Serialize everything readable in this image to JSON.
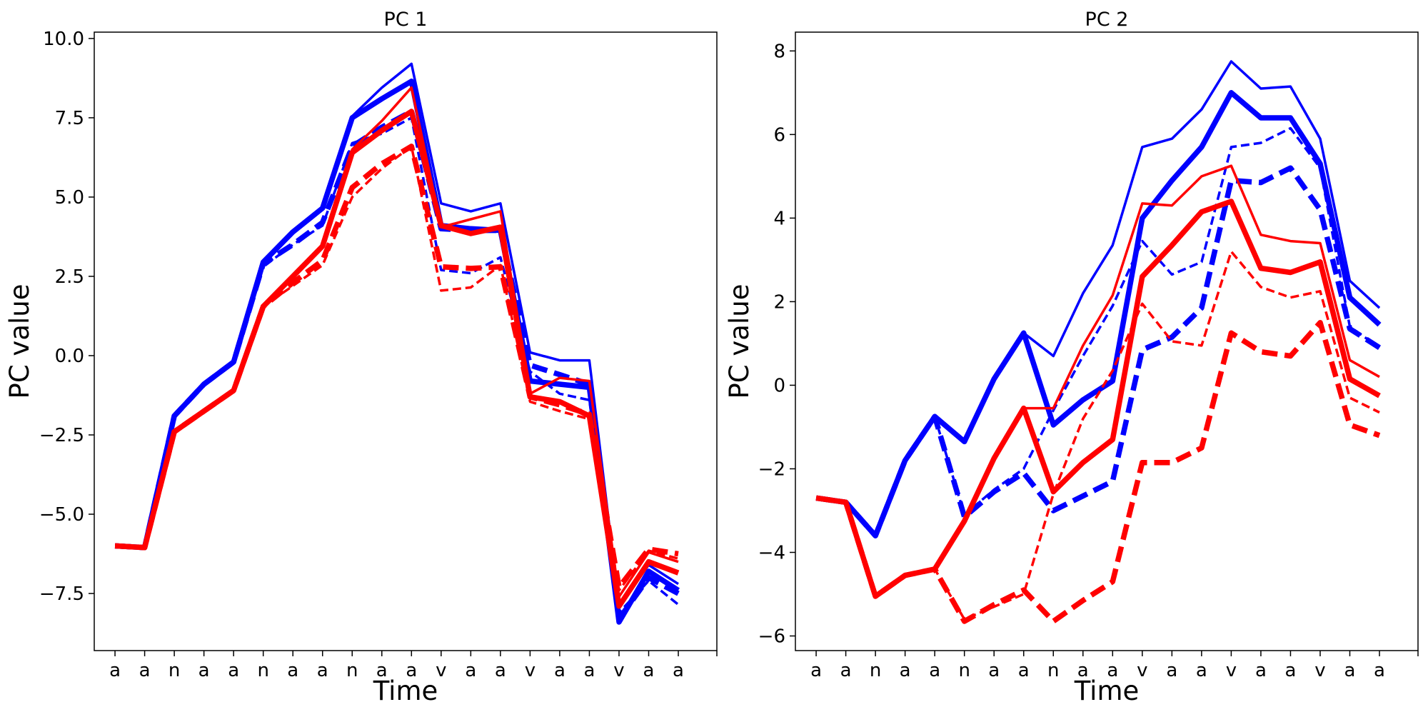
{
  "chart_data": [
    {
      "type": "line",
      "title": "PC 1",
      "xlabel": "Time",
      "ylabel": "PC value",
      "categories": [
        "a",
        "a",
        "n",
        "a",
        "a",
        "n",
        "a",
        "a",
        "n",
        "a",
        "a",
        "v",
        "a",
        "a",
        "v",
        "a",
        "a",
        "v",
        "a",
        "a"
      ],
      "ylim": [
        -9.3,
        10.2
      ],
      "yticks": [
        10.0,
        7.5,
        5.0,
        2.5,
        0.0,
        -2.5,
        -5.0,
        -7.5
      ],
      "ytick_labels": [
        "10.0",
        "7.5",
        "5.0",
        "2.5",
        "0.0",
        "−2.5",
        "−5.0",
        "−7.5"
      ],
      "series": [
        {
          "name": "blue-solid-thin",
          "color": "#0000ff",
          "style": "solid",
          "weight": "thin",
          "values": [
            -6.0,
            -6.05,
            -1.9,
            -0.9,
            -0.2,
            2.95,
            3.9,
            4.65,
            7.55,
            8.45,
            9.2,
            4.8,
            4.55,
            4.8,
            0.1,
            -0.15,
            -0.15,
            -7.9,
            -6.6,
            -7.2
          ]
        },
        {
          "name": "blue-solid-thick",
          "color": "#0000ff",
          "style": "solid",
          "weight": "thick",
          "values": [
            -6.0,
            -6.05,
            -1.9,
            -0.9,
            -0.2,
            2.95,
            3.9,
            4.65,
            7.5,
            8.1,
            8.65,
            4.1,
            4.0,
            3.95,
            -0.8,
            -0.9,
            -1.0,
            -8.4,
            -6.8,
            -7.4
          ]
        },
        {
          "name": "blue-dashed-thin",
          "color": "#0000ff",
          "style": "dashed",
          "weight": "thin",
          "values": [
            -6.0,
            -6.05,
            -1.9,
            -0.9,
            -0.2,
            2.8,
            3.5,
            4.1,
            6.7,
            7.0,
            7.5,
            2.7,
            2.6,
            3.1,
            -0.5,
            -1.2,
            -1.4,
            -8.1,
            -7.1,
            -7.85
          ]
        },
        {
          "name": "blue-dashed-thick",
          "color": "#0000ff",
          "style": "dashed",
          "weight": "thick",
          "values": [
            -6.0,
            -6.05,
            -1.9,
            -0.9,
            -0.2,
            2.9,
            3.5,
            4.2,
            6.6,
            7.2,
            7.7,
            4.0,
            3.95,
            3.95,
            -0.3,
            -0.6,
            -0.9,
            -8.3,
            -7.0,
            -7.5
          ]
        },
        {
          "name": "red-solid-thin",
          "color": "#ff0000",
          "style": "solid",
          "weight": "thin",
          "values": [
            -6.0,
            -6.05,
            -2.4,
            -1.75,
            -1.1,
            1.55,
            2.5,
            3.45,
            6.5,
            7.4,
            8.45,
            4.05,
            4.3,
            4.55,
            -1.2,
            -0.7,
            -0.8,
            -7.6,
            -6.2,
            -6.5
          ]
        },
        {
          "name": "red-solid-thick",
          "color": "#ff0000",
          "style": "solid",
          "weight": "thick",
          "values": [
            -6.0,
            -6.05,
            -2.4,
            -1.75,
            -1.1,
            1.55,
            2.5,
            3.45,
            6.4,
            7.1,
            7.7,
            4.1,
            3.85,
            4.05,
            -1.3,
            -1.45,
            -1.9,
            -7.9,
            -6.5,
            -6.85
          ]
        },
        {
          "name": "red-dashed-thin",
          "color": "#ff0000",
          "style": "dashed",
          "weight": "thin",
          "values": [
            -6.0,
            -6.05,
            -2.4,
            -1.75,
            -1.1,
            1.55,
            2.2,
            2.85,
            5.0,
            5.9,
            6.6,
            2.05,
            2.15,
            2.85,
            -1.45,
            -1.75,
            -2.0,
            -7.4,
            -6.15,
            -6.4
          ]
        },
        {
          "name": "red-dashed-thick",
          "color": "#ff0000",
          "style": "dashed",
          "weight": "thick",
          "values": [
            -6.0,
            -6.05,
            -2.4,
            -1.75,
            -1.1,
            1.55,
            2.3,
            3.0,
            5.3,
            6.05,
            6.6,
            2.8,
            2.75,
            2.8,
            -1.3,
            -1.55,
            -1.85,
            -7.3,
            -6.1,
            -6.25
          ]
        }
      ]
    },
    {
      "type": "line",
      "title": "PC 2",
      "xlabel": "Time",
      "ylabel": "PC value",
      "categories": [
        "a",
        "a",
        "n",
        "a",
        "a",
        "n",
        "a",
        "a",
        "n",
        "a",
        "a",
        "v",
        "a",
        "a",
        "v",
        "a",
        "a",
        "v",
        "a",
        "a"
      ],
      "ylim": [
        -6.35,
        8.45
      ],
      "yticks": [
        8,
        6,
        4,
        2,
        0,
        -2,
        -4,
        -6
      ],
      "ytick_labels": [
        "8",
        "6",
        "4",
        "2",
        "0",
        "−2",
        "−4",
        "−6"
      ],
      "series": [
        {
          "name": "blue-solid-thin",
          "color": "#0000ff",
          "style": "solid",
          "weight": "thin",
          "values": [
            -2.7,
            -2.8,
            -3.6,
            -1.8,
            -0.75,
            -1.35,
            0.15,
            1.25,
            0.7,
            2.2,
            3.35,
            5.7,
            5.9,
            6.6,
            7.75,
            7.1,
            7.15,
            5.9,
            2.5,
            1.85
          ]
        },
        {
          "name": "blue-solid-thick",
          "color": "#0000ff",
          "style": "solid",
          "weight": "thick",
          "values": [
            -2.7,
            -2.8,
            -3.6,
            -1.8,
            -0.75,
            -1.35,
            0.15,
            1.25,
            -0.95,
            -0.35,
            0.1,
            4.0,
            4.9,
            5.7,
            7.0,
            6.4,
            6.4,
            5.3,
            2.1,
            1.45
          ]
        },
        {
          "name": "blue-dashed-thin",
          "color": "#0000ff",
          "style": "dashed",
          "weight": "thin",
          "values": [
            -2.7,
            -2.8,
            -3.6,
            -1.8,
            -0.75,
            -3.1,
            -2.5,
            -2.0,
            -0.6,
            0.7,
            1.9,
            3.45,
            2.65,
            2.95,
            5.7,
            5.8,
            6.15,
            5.2,
            1.4,
            0.9
          ]
        },
        {
          "name": "blue-dashed-thick",
          "color": "#0000ff",
          "style": "dashed",
          "weight": "thick",
          "values": [
            -2.7,
            -2.8,
            -3.6,
            -1.8,
            -0.75,
            -3.15,
            -2.55,
            -2.1,
            -3.0,
            -2.65,
            -2.3,
            0.85,
            1.15,
            1.85,
            4.9,
            4.85,
            5.2,
            4.2,
            1.35,
            0.9
          ]
        },
        {
          "name": "red-solid-thin",
          "color": "#ff0000",
          "style": "solid",
          "weight": "thin",
          "values": [
            -2.7,
            -2.8,
            -5.05,
            -4.55,
            -4.4,
            -3.25,
            -1.75,
            -0.55,
            -0.55,
            0.95,
            2.15,
            4.35,
            4.3,
            5.0,
            5.25,
            3.6,
            3.45,
            3.4,
            0.6,
            0.2
          ]
        },
        {
          "name": "red-solid-thick",
          "color": "#ff0000",
          "style": "solid",
          "weight": "thick",
          "values": [
            -2.7,
            -2.8,
            -5.05,
            -4.55,
            -4.4,
            -3.25,
            -1.75,
            -0.55,
            -2.55,
            -1.85,
            -1.3,
            2.6,
            3.35,
            4.15,
            4.4,
            2.8,
            2.7,
            2.95,
            0.15,
            -0.25
          ]
        },
        {
          "name": "red-dashed-thin",
          "color": "#ff0000",
          "style": "dashed",
          "weight": "thin",
          "values": [
            -2.7,
            -2.8,
            -5.05,
            -4.55,
            -4.4,
            -5.6,
            -5.3,
            -5.0,
            -2.6,
            -0.8,
            0.35,
            1.95,
            1.05,
            0.95,
            3.2,
            2.35,
            2.1,
            2.25,
            -0.3,
            -0.65
          ]
        },
        {
          "name": "red-dashed-thick",
          "color": "#ff0000",
          "style": "dashed",
          "weight": "thick",
          "values": [
            -2.7,
            -2.8,
            -5.05,
            -4.55,
            -4.4,
            -5.65,
            -5.25,
            -4.9,
            -5.65,
            -5.15,
            -4.7,
            -1.85,
            -1.85,
            -1.5,
            1.25,
            0.8,
            0.7,
            1.5,
            -0.95,
            -1.2
          ]
        }
      ]
    }
  ]
}
